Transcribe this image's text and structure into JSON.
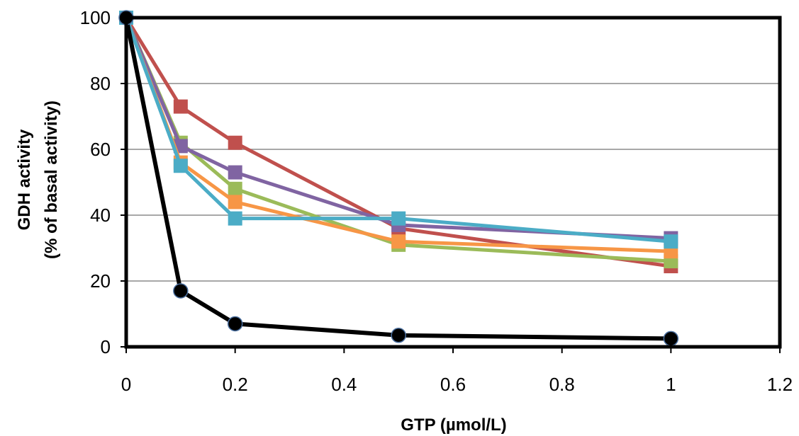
{
  "chart_data": {
    "type": "line",
    "title": "",
    "xlabel": "GTP (µmol/L)",
    "ylabel_line1": "GDH activity",
    "ylabel_line2": "(% of basal activity)",
    "xlim": [
      0,
      1.2
    ],
    "ylim": [
      0,
      100
    ],
    "xticks": [
      0,
      0.2,
      0.4,
      0.6,
      0.8,
      1,
      1.2
    ],
    "xtick_labels": [
      "0",
      "0.2",
      "0.4",
      "0.6",
      "0.8",
      "1",
      "1.2"
    ],
    "yticks": [
      0,
      20,
      40,
      60,
      80,
      100
    ],
    "ytick_labels": [
      "0",
      "20",
      "40",
      "60",
      "80",
      "100"
    ],
    "grid": "horizontal",
    "x": [
      0,
      0.1,
      0.2,
      0.5,
      1
    ],
    "series": [
      {
        "color": "#c0504d",
        "marker": "square",
        "values": [
          100,
          73,
          62,
          36,
          24.5
        ]
      },
      {
        "color": "#9bbb59",
        "marker": "square",
        "values": [
          100,
          62,
          48,
          31,
          26
        ]
      },
      {
        "color": "#8064a2",
        "marker": "square",
        "values": [
          100,
          61,
          53,
          37,
          33
        ]
      },
      {
        "color": "#f79646",
        "marker": "square",
        "values": [
          100,
          56,
          44,
          32,
          29
        ]
      },
      {
        "color": "#4bacc6",
        "marker": "square",
        "values": [
          100,
          55,
          39,
          39,
          32
        ]
      },
      {
        "color": "#000000",
        "marker": "circle",
        "values": [
          100,
          17,
          7,
          3.5,
          2.5
        ]
      }
    ]
  }
}
